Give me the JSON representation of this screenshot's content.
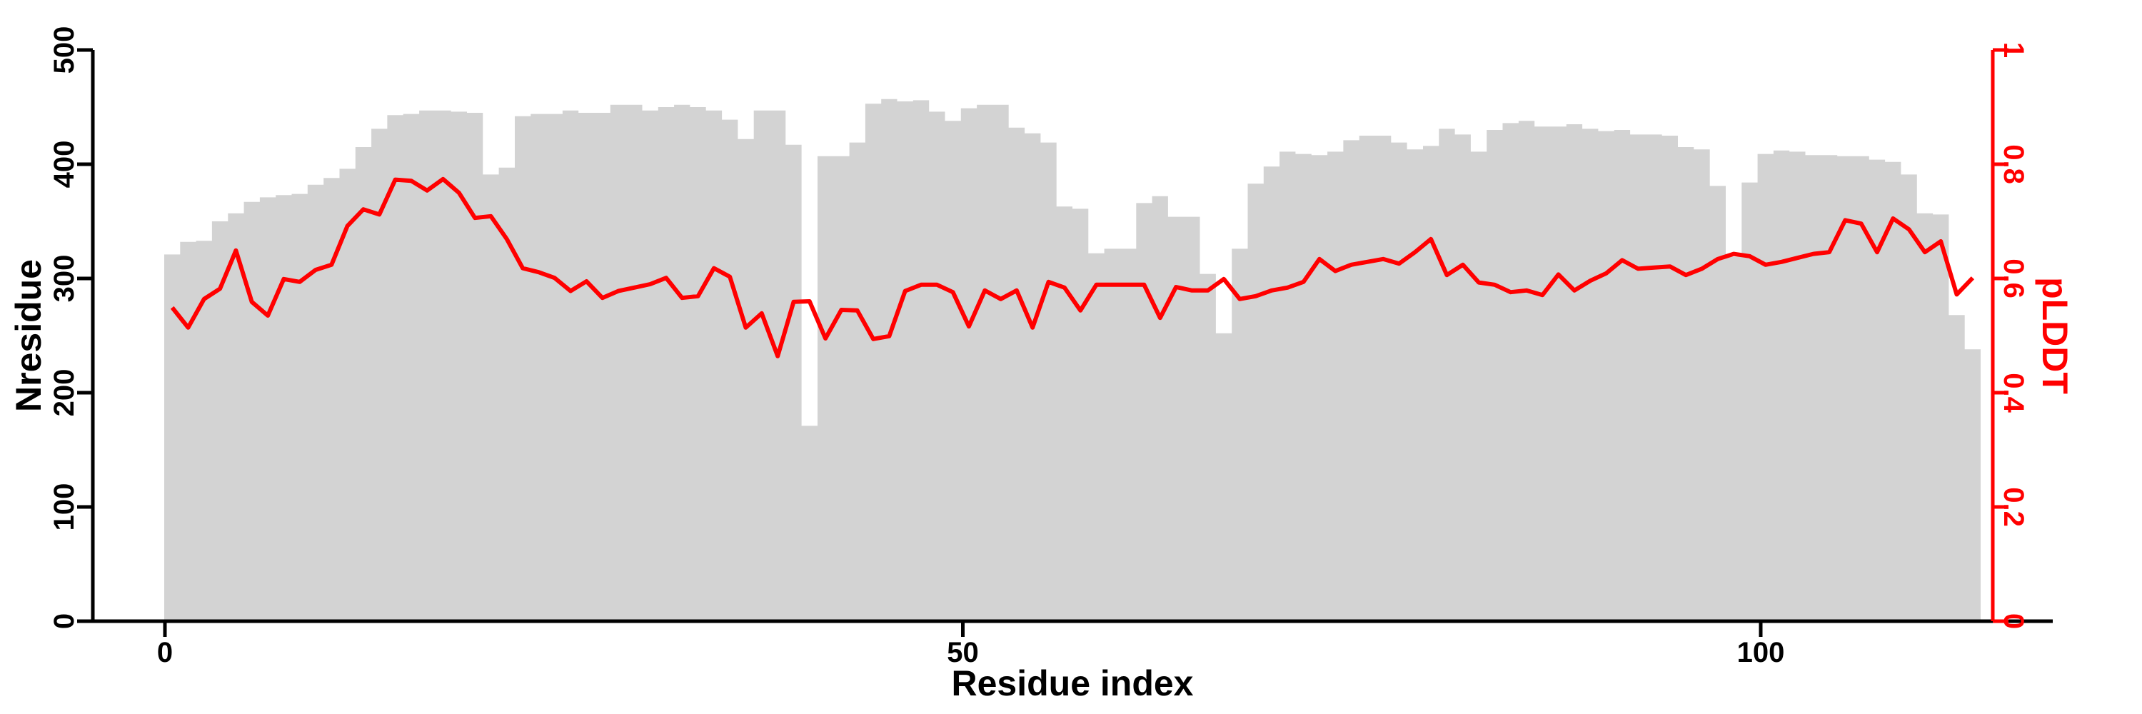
{
  "page": {
    "background": "#ffffff"
  },
  "chart_data": {
    "type": "bar",
    "title": "",
    "xlabel": "Residue index",
    "ylabel_left": "Nresidue",
    "ylabel_right": "pLDDT",
    "x_start": 0,
    "x_end": 113,
    "n_residues": 114,
    "xticks": [
      0,
      50,
      100
    ],
    "yticks_left": [
      0,
      100,
      200,
      300,
      400,
      500
    ],
    "yticks_right": [
      "0",
      "0.2",
      "0.4",
      "0.6",
      "0.8",
      "1"
    ],
    "ylim_left": [
      0,
      500
    ],
    "ylim_right": [
      0,
      1
    ],
    "grid": false,
    "legend": "none",
    "colors": {
      "bar_fill": "#d3d3d3",
      "line": "#ff0000",
      "axis_left": "#000000",
      "axis_bottom": "#000000",
      "axis_right": "#ff0000",
      "background": "#ffffff"
    },
    "series": [
      {
        "name": "Nresidue",
        "type": "bar",
        "axis": "left",
        "color": "#d3d3d3",
        "values": [
          321,
          332,
          333,
          350,
          357,
          367,
          371,
          373,
          374,
          382,
          388,
          396,
          415,
          431,
          443,
          444,
          447,
          447,
          446,
          445,
          391,
          397,
          442,
          444,
          444,
          447,
          445,
          445,
          452,
          452,
          447,
          450,
          452,
          450,
          447,
          439,
          422,
          447,
          447,
          417,
          171,
          407,
          407,
          419,
          453,
          457,
          455,
          456,
          446,
          438,
          449,
          452,
          452,
          432,
          427,
          419,
          363,
          361,
          322,
          326,
          326,
          366,
          372,
          354,
          354,
          304,
          252,
          326,
          383,
          398,
          411,
          409,
          408,
          411,
          421,
          425,
          425,
          419,
          413,
          416,
          431,
          426,
          411,
          430,
          436,
          438,
          433,
          433,
          435,
          431,
          429,
          430,
          426,
          426,
          425,
          415,
          413,
          381,
          319,
          384,
          409,
          412,
          411,
          408,
          408,
          407,
          407,
          404,
          402,
          391,
          357,
          356,
          268,
          238
        ]
      },
      {
        "name": "pLDDT",
        "type": "line",
        "axis": "right",
        "color": "#ff0000",
        "values": [
          0.549,
          0.514,
          0.564,
          0.582,
          0.649,
          0.559,
          0.535,
          0.599,
          0.594,
          0.615,
          0.624,
          0.692,
          0.721,
          0.712,
          0.773,
          0.771,
          0.754,
          0.774,
          0.75,
          0.706,
          0.709,
          0.669,
          0.618,
          0.611,
          0.601,
          0.578,
          0.595,
          0.566,
          0.578,
          0.584,
          0.59,
          0.601,
          0.566,
          0.569,
          0.618,
          0.603,
          0.514,
          0.539,
          0.464,
          0.559,
          0.56,
          0.495,
          0.545,
          0.544,
          0.494,
          0.499,
          0.578,
          0.589,
          0.589,
          0.576,
          0.516,
          0.579,
          0.564,
          0.579,
          0.514,
          0.594,
          0.584,
          0.544,
          0.589,
          0.589,
          0.589,
          0.589,
          0.531,
          0.585,
          0.579,
          0.579,
          0.599,
          0.564,
          0.569,
          0.579,
          0.584,
          0.594,
          0.634,
          0.613,
          0.624,
          0.629,
          0.634,
          0.626,
          0.646,
          0.669,
          0.606,
          0.624,
          0.593,
          0.589,
          0.576,
          0.579,
          0.571,
          0.607,
          0.579,
          0.596,
          0.609,
          0.632,
          0.617,
          0.619,
          0.621,
          0.606,
          0.617,
          0.634,
          0.643,
          0.639,
          0.624,
          0.629,
          0.636,
          0.643,
          0.646,
          0.702,
          0.696,
          0.646,
          0.705,
          0.686,
          0.646,
          0.665,
          0.572,
          0.601
        ]
      }
    ]
  }
}
